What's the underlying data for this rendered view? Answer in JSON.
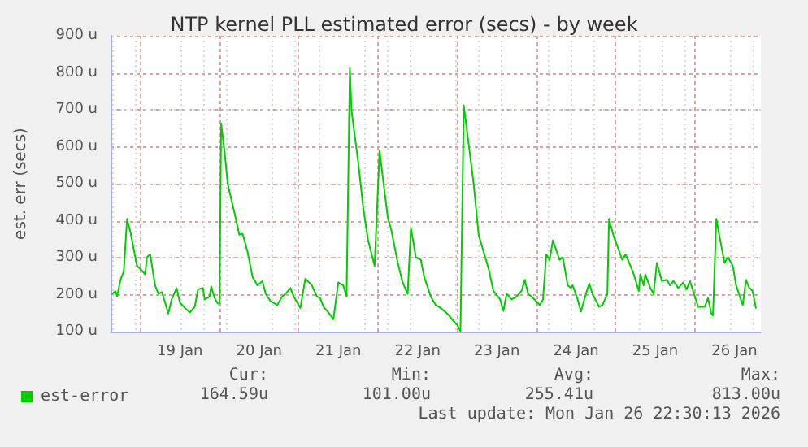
{
  "chart_data": {
    "type": "line",
    "title": "NTP kernel PLL estimated error (secs) - by week",
    "ylabel": "est. err (secs)",
    "x": [
      "2026-01-18T15:30",
      "2026-01-18T16:30",
      "2026-01-18T17:00",
      "2026-01-18T18:00",
      "2026-01-18T19:00",
      "2026-01-18T20:00",
      "2026-01-18T21:00",
      "2026-01-18T23:00",
      "2026-01-19T00:00",
      "2026-01-19T01:30",
      "2026-01-19T02:00",
      "2026-01-19T03:00",
      "2026-01-19T04:30",
      "2026-01-19T05:30",
      "2026-01-19T06:30",
      "2026-01-19T07:30",
      "2026-01-19T08:30",
      "2026-01-19T09:30",
      "2026-01-19T11:00",
      "2026-01-19T12:00",
      "2026-01-19T13:30",
      "2026-01-19T15:00",
      "2026-01-19T16:30",
      "2026-01-19T17:30",
      "2026-01-19T19:00",
      "2026-01-19T19:30",
      "2026-01-19T21:00",
      "2026-01-19T21:30",
      "2026-01-19T22:30",
      "2026-01-19T23:30",
      "2026-01-20T00:00",
      "2026-01-20T00:30",
      "2026-01-20T01:30",
      "2026-01-20T02:30",
      "2026-01-20T04:30",
      "2026-01-20T06:00",
      "2026-01-20T07:00",
      "2026-01-20T08:30",
      "2026-01-20T10:00",
      "2026-01-20T11:30",
      "2026-01-20T13:00",
      "2026-01-20T14:00",
      "2026-01-20T15:30",
      "2026-01-20T17:30",
      "2026-01-20T19:00",
      "2026-01-20T20:00",
      "2026-01-20T21:30",
      "2026-01-20T22:30",
      "2026-01-21T00:30",
      "2026-01-21T02:00",
      "2026-01-21T04:00",
      "2026-01-21T05:30",
      "2026-01-21T06:30",
      "2026-01-21T07:30",
      "2026-01-21T09:00",
      "2026-01-21T10:30",
      "2026-01-21T12:00",
      "2026-01-21T13:30",
      "2026-01-21T14:30",
      "2026-01-21T15:30",
      "2026-01-21T16:00",
      "2026-01-21T18:00",
      "2026-01-21T19:30",
      "2026-01-21T21:00",
      "2026-01-21T23:00",
      "2026-01-22T00:30",
      "2026-01-22T01:30",
      "2026-01-22T03:00",
      "2026-01-22T04:00",
      "2026-01-22T06:00",
      "2026-01-22T07:30",
      "2026-01-22T09:00",
      "2026-01-22T10:00",
      "2026-01-22T11:30",
      "2026-01-22T13:00",
      "2026-01-22T14:00",
      "2026-01-22T16:00",
      "2026-01-22T17:30",
      "2026-01-22T19:00",
      "2026-01-22T21:00",
      "2026-01-22T22:30",
      "2026-01-23T00:00",
      "2026-01-23T01:00",
      "2026-01-23T02:00",
      "2026-01-23T03:30",
      "2026-01-23T05:00",
      "2026-01-23T06:30",
      "2026-01-23T08:00",
      "2026-01-23T09:30",
      "2026-01-23T11:00",
      "2026-01-23T13:00",
      "2026-01-23T14:00",
      "2026-01-23T15:00",
      "2026-01-23T16:30",
      "2026-01-23T18:00",
      "2026-01-23T19:30",
      "2026-01-23T20:30",
      "2026-01-23T21:30",
      "2026-01-23T23:00",
      "2026-01-24T01:00",
      "2026-01-24T02:00",
      "2026-01-24T03:00",
      "2026-01-24T04:00",
      "2026-01-24T05:00",
      "2026-01-24T07:00",
      "2026-01-24T08:00",
      "2026-01-24T09:30",
      "2026-01-24T10:30",
      "2026-01-24T11:00",
      "2026-01-24T12:30",
      "2026-01-24T13:30",
      "2026-01-24T15:00",
      "2026-01-24T16:00",
      "2026-01-24T17:00",
      "2026-01-24T19:00",
      "2026-01-24T20:00",
      "2026-01-24T21:30",
      "2026-01-24T22:00",
      "2026-01-24T23:30",
      "2026-01-25T00:30",
      "2026-01-25T02:00",
      "2026-01-25T03:00",
      "2026-01-25T04:30",
      "2026-01-25T05:30",
      "2026-01-25T07:00",
      "2026-01-25T07:30",
      "2026-01-25T08:30",
      "2026-01-25T09:00",
      "2026-01-25T10:30",
      "2026-01-25T11:30",
      "2026-01-25T12:30",
      "2026-01-25T14:00",
      "2026-01-25T15:30",
      "2026-01-25T16:30",
      "2026-01-25T17:30",
      "2026-01-25T19:00",
      "2026-01-25T20:30",
      "2026-01-25T21:30",
      "2026-01-25T22:30",
      "2026-01-26T00:00",
      "2026-01-26T01:00",
      "2026-01-26T03:00",
      "2026-01-26T04:00",
      "2026-01-26T05:00",
      "2026-01-26T05:30",
      "2026-01-26T06:30",
      "2026-01-26T08:00",
      "2026-01-26T09:00",
      "2026-01-26T10:00",
      "2026-01-26T11:30",
      "2026-01-26T12:30",
      "2026-01-26T14:30",
      "2026-01-26T15:30",
      "2026-01-26T16:30",
      "2026-01-26T17:30",
      "2026-01-26T18:30"
    ],
    "series": [
      {
        "name": "est-error",
        "color": "#00cc00",
        "values": [
          202,
          209,
          195,
          240,
          263,
          405,
          370,
          278,
          270,
          255,
          301,
          309,
          225,
          202,
          207,
          179,
          149,
          187,
          218,
          179,
          164,
          152,
          167,
          214,
          218,
          187,
          195,
          222,
          191,
          176,
          176,
          663,
          590,
          499,
          423,
          362,
          365,
          316,
          248,
          225,
          237,
          202,
          182,
          172,
          195,
          202,
          218,
          195,
          164,
          243,
          225,
          195,
          191,
          167,
          152,
          133,
          233,
          225,
          195,
          813,
          697,
          560,
          438,
          347,
          278,
          590,
          515,
          408,
          377,
          286,
          233,
          202,
          380,
          301,
          294,
          248,
          195,
          172,
          164,
          149,
          133,
          118,
          101,
          712,
          606,
          499,
          362,
          316,
          271,
          210,
          187,
          156,
          202,
          187,
          195,
          210,
          240,
          202,
          191,
          172,
          187,
          309,
          294,
          347,
          294,
          301,
          225,
          218,
          225,
          187,
          154,
          202,
          230,
          202,
          167,
          172,
          202,
          405,
          355,
          332,
          294,
          309,
          278,
          255,
          210,
          255,
          225,
          255,
          218,
          202,
          286,
          237,
          240,
          225,
          237,
          218,
          233,
          214,
          237,
          195,
          167,
          167,
          191,
          149,
          144,
          405,
          332,
          286,
          301,
          278,
          225,
          172,
          240,
          218,
          210,
          164
        ]
      }
    ],
    "xlim": [
      "2026-01-18T15:00",
      "2026-01-26T20:00"
    ],
    "xticks": [
      {
        "value": "2026-01-19T00:00",
        "label": null
      },
      {
        "value": "2026-01-19T12:00",
        "label": "19 Jan"
      },
      {
        "value": "2026-01-20T00:00",
        "label": null
      },
      {
        "value": "2026-01-20T12:00",
        "label": "20 Jan"
      },
      {
        "value": "2026-01-21T00:00",
        "label": null
      },
      {
        "value": "2026-01-21T12:00",
        "label": "21 Jan"
      },
      {
        "value": "2026-01-22T00:00",
        "label": null
      },
      {
        "value": "2026-01-22T12:00",
        "label": "22 Jan"
      },
      {
        "value": "2026-01-23T00:00",
        "label": null
      },
      {
        "value": "2026-01-23T12:00",
        "label": "23 Jan"
      },
      {
        "value": "2026-01-24T00:00",
        "label": null
      },
      {
        "value": "2026-01-24T12:00",
        "label": "24 Jan"
      },
      {
        "value": "2026-01-25T00:00",
        "label": null
      },
      {
        "value": "2026-01-25T12:00",
        "label": "25 Jan"
      },
      {
        "value": "2026-01-26T00:00",
        "label": null
      },
      {
        "value": "2026-01-26T12:00",
        "label": "26 Jan"
      }
    ],
    "ylim": [
      100,
      900
    ],
    "yticks": [
      {
        "value": 100,
        "label": "100 u"
      },
      {
        "value": 200,
        "label": "200 u"
      },
      {
        "value": 300,
        "label": "300 u"
      },
      {
        "value": 400,
        "label": "400 u"
      },
      {
        "value": 500,
        "label": "500 u"
      },
      {
        "value": 600,
        "label": "600 u"
      },
      {
        "value": 700,
        "label": "700 u"
      },
      {
        "value": 800,
        "label": "800 u"
      },
      {
        "value": 900,
        "label": "900 u"
      }
    ],
    "grid": true,
    "legend": "bottom left",
    "marker": "none",
    "line_style": "solid",
    "annotations": [
      "Cur:",
      "164.59u",
      "Min:",
      "101.00u",
      "Avg:",
      "255.41u",
      "Max:",
      "813.00u",
      "Last update: Mon Jan 26 22:30:13 2026"
    ]
  }
}
